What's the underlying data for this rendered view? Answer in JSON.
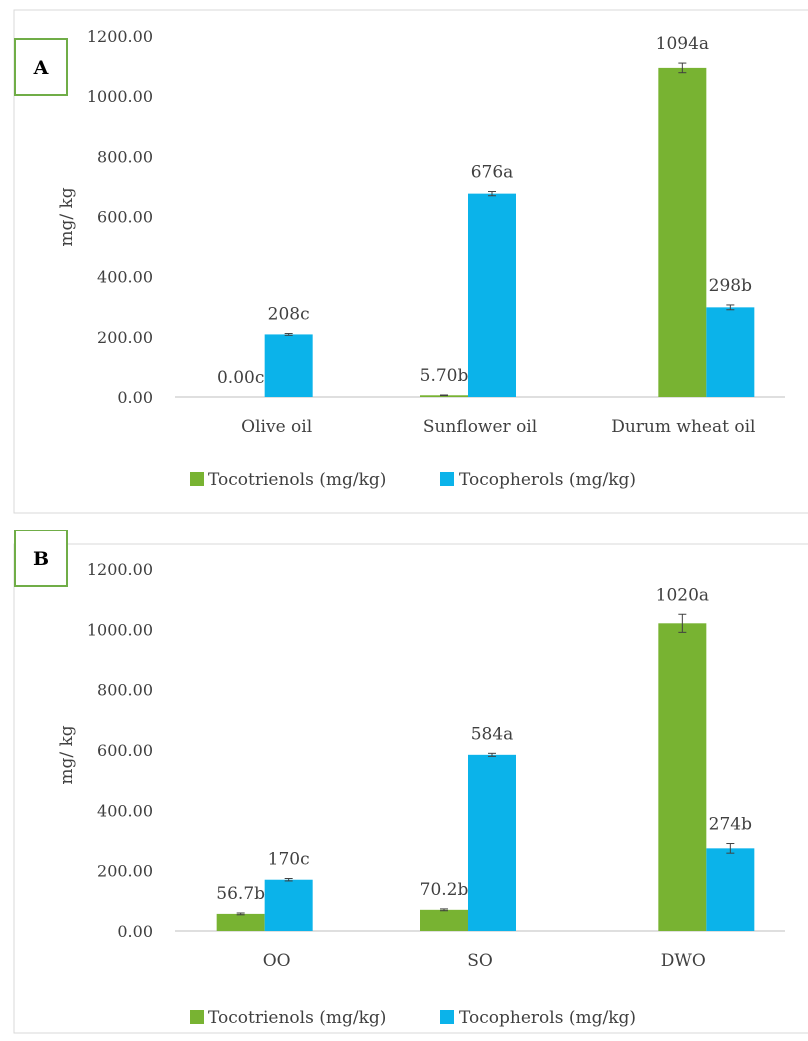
{
  "colors": {
    "tocotrienols": "#78b332",
    "tocopherols": "#0bb3ea",
    "label_box_border": "#70ad47",
    "axis": "#bfbfbf",
    "text": "#404040",
    "panel_border": "#d9d9d9"
  },
  "legend": {
    "tocotrienols": "Tocotrienols (mg/kg)",
    "tocopherols": "Tocopherols (mg/kg)"
  },
  "chart_data": [
    {
      "type": "bar",
      "panel_label": "A",
      "ylabel": "mg/ kg",
      "ylim": [
        0,
        1200
      ],
      "yticks": [
        "0.00",
        "200.00",
        "400.00",
        "600.00",
        "800.00",
        "1000.00",
        "1200.00"
      ],
      "categories": [
        "Olive oil",
        "Sunflower oil",
        "Durum wheat oil"
      ],
      "grid": false,
      "legend_position": "bottom",
      "series": [
        {
          "name": "Tocotrienols (mg/kg)",
          "key": "tocotrienols",
          "values": [
            0.0,
            5.7,
            1094
          ],
          "errors": [
            0,
            1,
            16
          ],
          "labels": [
            "0.00c",
            "5.70b",
            "1094a"
          ]
        },
        {
          "name": "Tocopherols (mg/kg)",
          "key": "tocopherols",
          "values": [
            208,
            676,
            298
          ],
          "errors": [
            3,
            7,
            8
          ],
          "labels": [
            "208c",
            "676a",
            "298b"
          ]
        }
      ]
    },
    {
      "type": "bar",
      "panel_label": "B",
      "ylabel": "mg/ kg",
      "ylim": [
        0,
        1200
      ],
      "yticks": [
        "0.00",
        "200.00",
        "400.00",
        "600.00",
        "800.00",
        "1000.00",
        "1200.00"
      ],
      "categories": [
        "OO",
        "SO",
        "DWO"
      ],
      "grid": false,
      "legend_position": "bottom",
      "series": [
        {
          "name": "Tocotrienols (mg/kg)",
          "key": "tocotrienols",
          "values": [
            56.7,
            70.2,
            1020
          ],
          "errors": [
            3,
            3,
            30
          ],
          "labels": [
            "56.7b",
            "70.2b",
            "1020a"
          ]
        },
        {
          "name": "Tocopherols (mg/kg)",
          "key": "tocopherols",
          "values": [
            170,
            584,
            274
          ],
          "errors": [
            4,
            5,
            16
          ],
          "labels": [
            "170c",
            "584a",
            "274b"
          ]
        }
      ]
    }
  ]
}
